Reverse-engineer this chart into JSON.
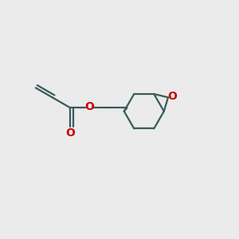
{
  "bg_color": "#ebebeb",
  "bond_color": "#3a5a5a",
  "oxygen_color": "#cc0000",
  "bond_width": 1.6,
  "figsize": [
    3.0,
    3.0
  ],
  "dpi": 100,
  "xlim": [
    0,
    10
  ],
  "ylim": [
    0,
    10
  ]
}
